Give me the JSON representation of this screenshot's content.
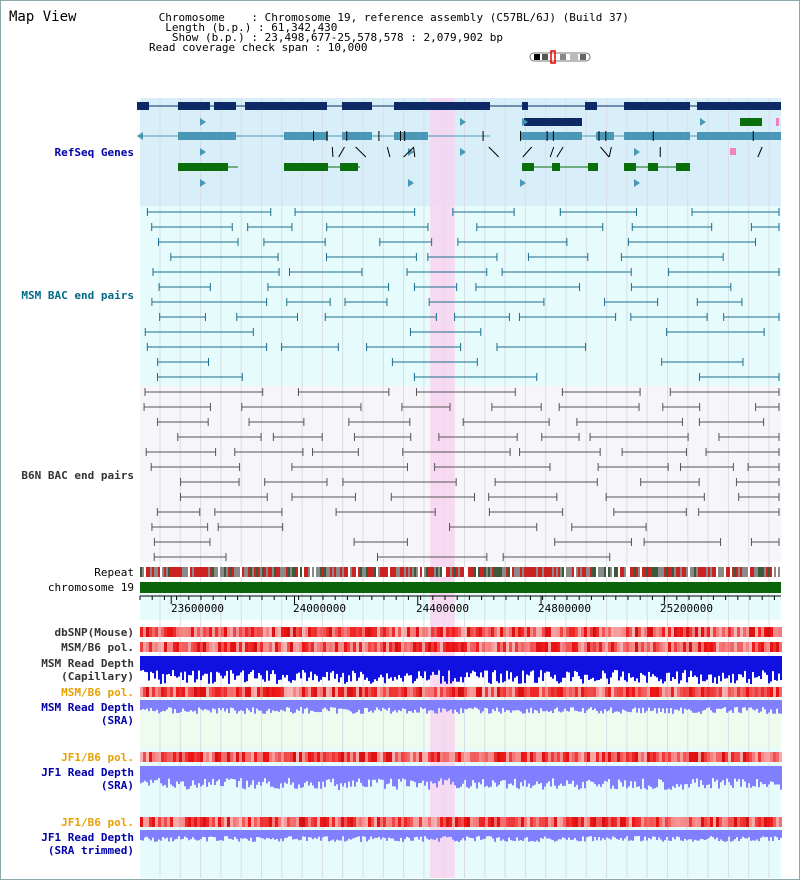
{
  "header": {
    "title": "Map View",
    "info_lines": [
      " Chromosome    : Chromosome 19, reference assembly (C57BL/6J) (Build 37)",
      "  Length (b.p.) : 61,342,430",
      "   Show (b.p.) : 23,498,677-25,578,578 : 2,079,902 bp",
      "Read coverage check span : 10,000"
    ]
  },
  "tracks": {
    "refseq": "RefSeq Genes",
    "msm_bac": "MSM BAC end pairs",
    "b6n_bac": "B6N BAC end pairs",
    "repeat": "Repeat",
    "chromosome": "chromosome 19",
    "dbsnp": "dbSNP(Mouse)",
    "msm_b6_pol_1": "MSM/B6 pol.",
    "msm_depth_cap_1": "MSM Read Depth",
    "msm_depth_cap_2": "(Capillary)",
    "msm_b6_pol_2": "MSM/B6 pol.",
    "msm_depth_sra_1": "MSM Read Depth",
    "msm_depth_sra_2": "(SRA)",
    "jf1_b6_pol_1": "JF1/B6 pol.",
    "jf1_depth_sra_1": "JF1 Read Depth",
    "jf1_depth_sra_2": "(SRA)",
    "jf1_b6_pol_2": "JF1/B6 pol.",
    "jf1_depth_trim_1": "JF1 Read Depth",
    "jf1_depth_trim_2": "(SRA trimmed)"
  },
  "axis": {
    "ticks": [
      "23600000",
      "24000000",
      "24400000",
      "24800000",
      "25200000"
    ],
    "positions": [
      23600000,
      24000000,
      24400000,
      24800000,
      25200000
    ],
    "range": [
      23498677,
      25578578
    ],
    "highlight": [
      24440000,
      24520000
    ]
  },
  "colors": {
    "refseq_bg": "#d8effa",
    "bac_bg": "#e6fbfb",
    "b6n_bg": "#f5f5fa",
    "highlight": "#f7d4f0",
    "gene_navy": "#0d2a66",
    "gene_blue": "#4a97b8",
    "gene_green": "#0a6e0a",
    "msm_line": "#1b6e8c",
    "b6n_line": "#555555",
    "depth_blue": "#1010e0",
    "sra_blue": "#8080ff",
    "pol_red": "#f03030",
    "chrom_green": "#0a640a"
  }
}
